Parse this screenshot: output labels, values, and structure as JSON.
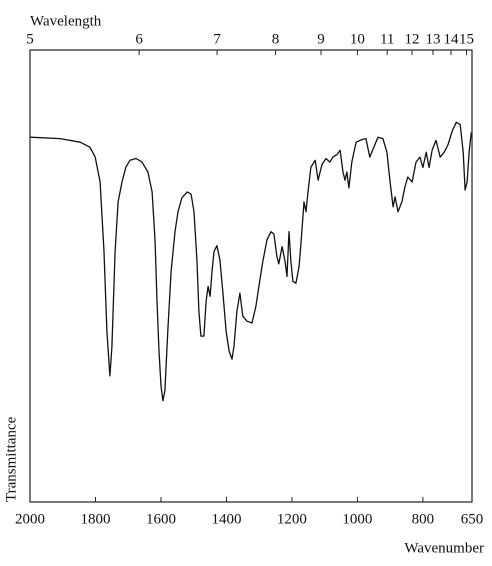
{
  "chart_data": {
    "type": "line",
    "top_axis_label": "Wavelength",
    "x_axis_label": "Wavenumber",
    "y_axis_label": "Transmittance",
    "xlim": [
      2000,
      650
    ],
    "xticks": [
      2000,
      1800,
      1600,
      1400,
      1200,
      1000,
      800,
      650
    ],
    "x2ticks": [
      5,
      6,
      7,
      8,
      9,
      10,
      11,
      12,
      13,
      14,
      15
    ],
    "ylim": [
      0,
      100
    ],
    "series": [
      {
        "color": "#111111",
        "x": [
          2000,
          1908,
          1847,
          1817,
          1801,
          1786,
          1774,
          1765,
          1756,
          1750,
          1740,
          1731,
          1719,
          1707,
          1695,
          1676,
          1658,
          1640,
          1627,
          1618,
          1612,
          1606,
          1600,
          1594,
          1588,
          1579,
          1569,
          1557,
          1548,
          1536,
          1520,
          1508,
          1499,
          1490,
          1484,
          1478,
          1469,
          1462,
          1456,
          1450,
          1444,
          1438,
          1429,
          1420,
          1411,
          1401,
          1392,
          1383,
          1377,
          1368,
          1359,
          1350,
          1337,
          1322,
          1310,
          1301,
          1289,
          1276,
          1264,
          1255,
          1246,
          1240,
          1230,
          1221,
          1215,
          1209,
          1203,
          1197,
          1188,
          1178,
          1172,
          1163,
          1157,
          1151,
          1142,
          1129,
          1120,
          1108,
          1096,
          1084,
          1075,
          1062,
          1053,
          1044,
          1038,
          1032,
          1026,
          1017,
          1004,
          986,
          974,
          962,
          950,
          937,
          922,
          910,
          900,
          891,
          885,
          876,
          864,
          855,
          846,
          833,
          821,
          809,
          800,
          790,
          781,
          772,
          760,
          747,
          735,
          723,
          710,
          698,
          686,
          677,
          671,
          665,
          659,
          652
        ],
        "values": [
          80.7,
          80.4,
          79.6,
          78.5,
          76.3,
          70.8,
          55.4,
          37.8,
          27.9,
          34.3,
          55.4,
          66.4,
          70.8,
          74.1,
          75.6,
          76.0,
          75.2,
          73.0,
          68.6,
          57.6,
          44.4,
          33.4,
          25.7,
          22.4,
          24.6,
          37.8,
          51.0,
          59.8,
          64.2,
          67.3,
          68.6,
          68.1,
          64.2,
          53.2,
          42.2,
          36.7,
          36.7,
          44.4,
          47.7,
          45.5,
          51.0,
          55.4,
          56.7,
          53.6,
          46.6,
          37.8,
          33.4,
          31.6,
          34.5,
          42.2,
          46.2,
          41.1,
          40.0,
          39.6,
          43.3,
          47.7,
          53.2,
          58.0,
          59.8,
          59.3,
          54.3,
          52.7,
          56.5,
          53.2,
          49.9,
          59.8,
          53.2,
          48.8,
          48.4,
          52.1,
          57.6,
          66.4,
          64.2,
          68.6,
          74.1,
          75.6,
          71.2,
          74.7,
          76.0,
          75.2,
          76.3,
          76.9,
          77.8,
          73.0,
          71.2,
          73.0,
          69.5,
          75.2,
          79.6,
          80.2,
          80.4,
          76.3,
          78.5,
          80.7,
          80.4,
          77.4,
          70.8,
          65.3,
          67.5,
          64.2,
          66.4,
          69.7,
          71.9,
          70.8,
          75.2,
          76.3,
          74.0,
          77.4,
          74.0,
          77.8,
          80.0,
          76.3,
          77.4,
          79.1,
          82.2,
          84.0,
          83.5,
          77.4,
          69.0,
          70.8,
          77.4,
          81.8
        ]
      }
    ]
  }
}
